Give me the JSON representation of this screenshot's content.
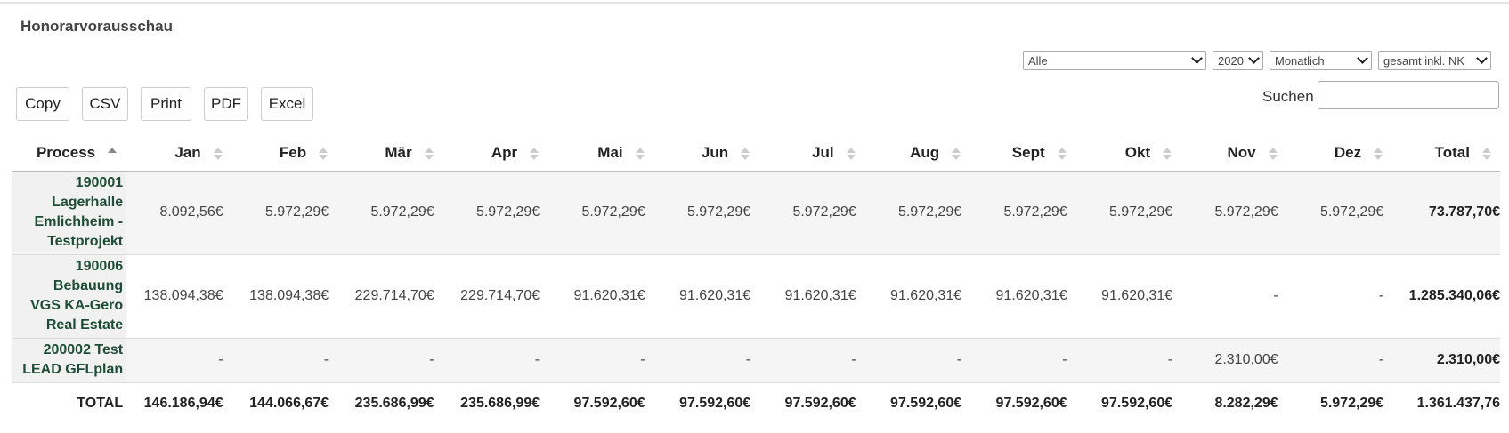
{
  "title": "Honorarvorausschau",
  "filters": {
    "scope": "Alle",
    "year": "2020",
    "period": "Monatlich",
    "mode": "gesamt inkl. NK"
  },
  "buttons": [
    "Copy",
    "CSV",
    "Print",
    "PDF",
    "Excel"
  ],
  "search": {
    "label": "Suchen",
    "value": ""
  },
  "table": {
    "columns": [
      "Process",
      "Jan",
      "Feb",
      "Mär",
      "Apr",
      "Mai",
      "Jun",
      "Jul",
      "Aug",
      "Sept",
      "Okt",
      "Nov",
      "Dez",
      "Total"
    ],
    "rows": [
      {
        "process": [
          "190001",
          "Lagerhalle",
          "Emlichheim -",
          "Testprojekt"
        ],
        "values": [
          "8.092,56€",
          "5.972,29€",
          "5.972,29€",
          "5.972,29€",
          "5.972,29€",
          "5.972,29€",
          "5.972,29€",
          "5.972,29€",
          "5.972,29€",
          "5.972,29€",
          "5.972,29€",
          "5.972,29€"
        ],
        "total": "73.787,70€"
      },
      {
        "process": [
          "190006",
          "Bebauung",
          "VGS KA-Gero",
          "Real Estate"
        ],
        "values": [
          "138.094,38€",
          "138.094,38€",
          "229.714,70€",
          "229.714,70€",
          "91.620,31€",
          "91.620,31€",
          "91.620,31€",
          "91.620,31€",
          "91.620,31€",
          "91.620,31€",
          "-",
          "-"
        ],
        "total": "1.285.340,06€"
      },
      {
        "process": [
          "200002 Test",
          "LEAD GFLplan"
        ],
        "values": [
          "-",
          "-",
          "-",
          "-",
          "-",
          "-",
          "-",
          "-",
          "-",
          "-",
          "2.310,00€",
          "-"
        ],
        "total": "2.310,00€"
      }
    ],
    "footer": {
      "label": "TOTAL",
      "values": [
        "146.186,94€",
        "144.066,67€",
        "235.686,99€",
        "235.686,99€",
        "97.592,60€",
        "97.592,60€",
        "97.592,60€",
        "97.592,60€",
        "97.592,60€",
        "97.592,60€",
        "8.282,29€",
        "5.972,29€"
      ],
      "total": "1.361.437,76"
    }
  }
}
